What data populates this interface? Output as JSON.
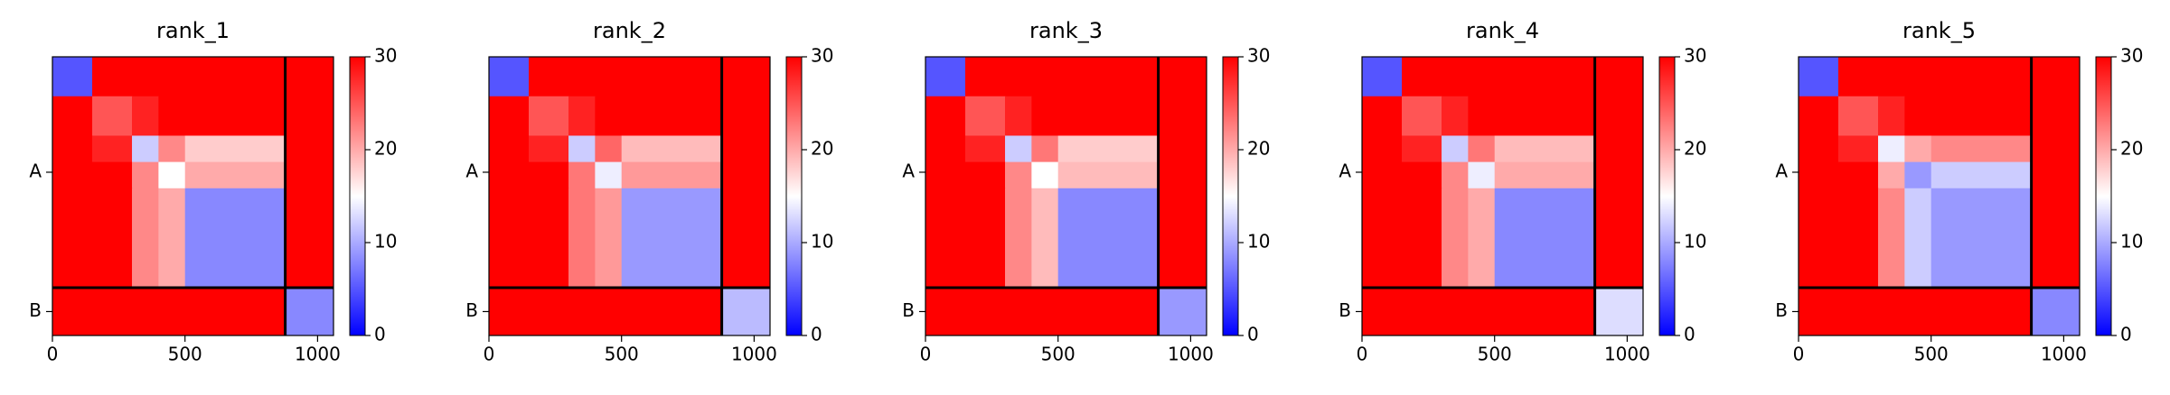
{
  "chart_data": [
    {
      "type": "heatmap",
      "title": "rank_1",
      "xlim": [
        0,
        1060
      ],
      "xticks": [
        0,
        500,
        1000
      ],
      "ylim": [
        1060,
        0
      ],
      "yticks": [
        {
          "value": 439,
          "label": "A"
        },
        {
          "value": 969,
          "label": "B"
        }
      ],
      "edges": [
        0,
        150,
        300,
        400,
        500,
        878,
        1060
      ],
      "chain_breaks": [
        878
      ],
      "values": [
        [
          5,
          30,
          30,
          30,
          30,
          30
        ],
        [
          30,
          25,
          28,
          30,
          30,
          30
        ],
        [
          30,
          28,
          12,
          22,
          18,
          30
        ],
        [
          30,
          30,
          22,
          15,
          20,
          30
        ],
        [
          30,
          30,
          22,
          20,
          8,
          30
        ],
        [
          30,
          30,
          30,
          30,
          30,
          8
        ]
      ],
      "clim": [
        0,
        30
      ],
      "cticks": [
        0,
        10,
        20,
        30
      ],
      "colormap": [
        "#0000ff",
        "#ffffff",
        "#ff0000"
      ]
    },
    {
      "type": "heatmap",
      "title": "rank_2",
      "xlim": [
        0,
        1060
      ],
      "xticks": [
        0,
        500,
        1000
      ],
      "ylim": [
        1060,
        0
      ],
      "yticks": [
        {
          "value": 439,
          "label": "A"
        },
        {
          "value": 969,
          "label": "B"
        }
      ],
      "edges": [
        0,
        150,
        300,
        400,
        500,
        878,
        1060
      ],
      "chain_breaks": [
        878
      ],
      "values": [
        [
          5,
          30,
          30,
          30,
          30,
          30
        ],
        [
          30,
          25,
          28,
          30,
          30,
          30
        ],
        [
          30,
          28,
          12,
          24,
          19,
          30
        ],
        [
          30,
          30,
          23,
          14,
          21,
          30
        ],
        [
          30,
          30,
          23,
          21,
          9,
          30
        ],
        [
          30,
          30,
          30,
          30,
          30,
          11
        ]
      ],
      "clim": [
        0,
        30
      ],
      "cticks": [
        0,
        10,
        20,
        30
      ],
      "colormap": [
        "#0000ff",
        "#ffffff",
        "#ff0000"
      ]
    },
    {
      "type": "heatmap",
      "title": "rank_3",
      "xlim": [
        0,
        1060
      ],
      "xticks": [
        0,
        500,
        1000
      ],
      "ylim": [
        1060,
        0
      ],
      "yticks": [
        {
          "value": 439,
          "label": "A"
        },
        {
          "value": 969,
          "label": "B"
        }
      ],
      "edges": [
        0,
        150,
        300,
        400,
        500,
        878,
        1060
      ],
      "chain_breaks": [
        878
      ],
      "values": [
        [
          5,
          30,
          30,
          30,
          30,
          30
        ],
        [
          30,
          25,
          28,
          30,
          30,
          30
        ],
        [
          30,
          28,
          12,
          23,
          18,
          30
        ],
        [
          30,
          30,
          22,
          15,
          19,
          30
        ],
        [
          30,
          30,
          22,
          19,
          8,
          30
        ],
        [
          30,
          30,
          30,
          30,
          30,
          9
        ]
      ],
      "clim": [
        0,
        30
      ],
      "cticks": [
        0,
        10,
        20,
        30
      ],
      "colormap": [
        "#0000ff",
        "#ffffff",
        "#ff0000"
      ]
    },
    {
      "type": "heatmap",
      "title": "rank_4",
      "xlim": [
        0,
        1060
      ],
      "xticks": [
        0,
        500,
        1000
      ],
      "ylim": [
        1060,
        0
      ],
      "yticks": [
        {
          "value": 439,
          "label": "A"
        },
        {
          "value": 969,
          "label": "B"
        }
      ],
      "edges": [
        0,
        150,
        300,
        400,
        500,
        878,
        1060
      ],
      "chain_breaks": [
        878
      ],
      "values": [
        [
          5,
          30,
          30,
          30,
          30,
          30
        ],
        [
          30,
          25,
          28,
          30,
          30,
          30
        ],
        [
          30,
          28,
          12,
          23,
          19,
          30
        ],
        [
          30,
          30,
          22,
          14,
          20,
          30
        ],
        [
          30,
          30,
          22,
          20,
          8,
          30
        ],
        [
          30,
          30,
          30,
          30,
          30,
          13
        ]
      ],
      "clim": [
        0,
        30
      ],
      "cticks": [
        0,
        10,
        20,
        30
      ],
      "colormap": [
        "#0000ff",
        "#ffffff",
        "#ff0000"
      ]
    },
    {
      "type": "heatmap",
      "title": "rank_5",
      "xlim": [
        0,
        1060
      ],
      "xticks": [
        0,
        500,
        1000
      ],
      "ylim": [
        1060,
        0
      ],
      "yticks": [
        {
          "value": 439,
          "label": "A"
        },
        {
          "value": 969,
          "label": "B"
        }
      ],
      "edges": [
        0,
        150,
        300,
        400,
        500,
        878,
        1060
      ],
      "chain_breaks": [
        878
      ],
      "values": [
        [
          5,
          30,
          30,
          30,
          30,
          30
        ],
        [
          30,
          25,
          28,
          30,
          30,
          30
        ],
        [
          30,
          28,
          14,
          20,
          22,
          30
        ],
        [
          30,
          30,
          20,
          9,
          12,
          30
        ],
        [
          30,
          30,
          22,
          12,
          9,
          30
        ],
        [
          30,
          30,
          30,
          30,
          30,
          8
        ]
      ],
      "clim": [
        0,
        30
      ],
      "cticks": [
        0,
        10,
        20,
        30
      ],
      "colormap": [
        "#0000ff",
        "#ffffff",
        "#ff0000"
      ]
    }
  ]
}
